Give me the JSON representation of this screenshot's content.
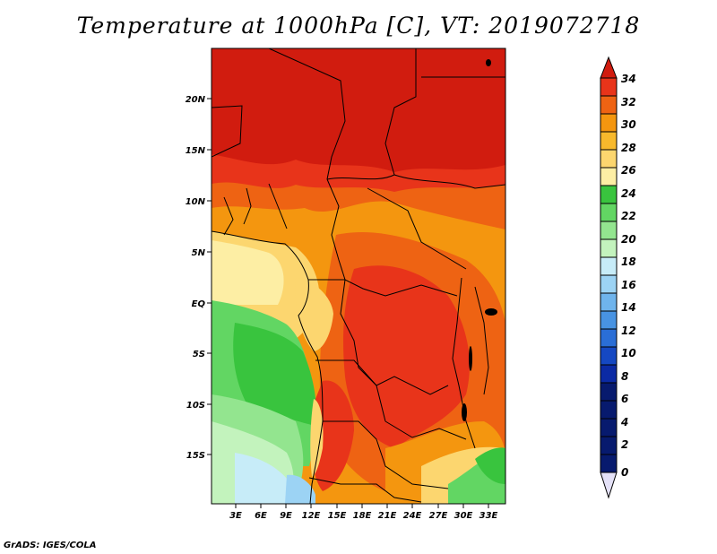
{
  "title": "Temperature at 1000hPa [C], VT: 2019072718",
  "credit": "GrADS: IGES/COLA",
  "map": {
    "lat_ticks": [
      "20N",
      "15N",
      "10N",
      "5N",
      "EQ",
      "5S",
      "10S",
      "15S"
    ],
    "lon_ticks": [
      "3E",
      "6E",
      "9E",
      "12E",
      "15E",
      "18E",
      "21E",
      "24E",
      "27E",
      "30E",
      "33E"
    ]
  },
  "colorbar": {
    "labels": [
      "34",
      "32",
      "30",
      "28",
      "26",
      "24",
      "22",
      "20",
      "18",
      "16",
      "14",
      "12",
      "10",
      "8",
      "6",
      "4",
      "2",
      "0"
    ],
    "colors": {
      "above_34": "#d11c0f",
      "32_34": "#e8341a",
      "30_32": "#ee6313",
      "28_30": "#f4960f",
      "26_28": "#f8b92c",
      "24_26": "#fcd66f",
      "22_24": "#fdeea4",
      "20_22": "#39c43e",
      "18_20": "#62d663",
      "16_18": "#93e58f",
      "14_16": "#c3f3bd",
      "12_14": "#c7ecf8",
      "10_12": "#9cd3f4",
      "8_10": "#6fb4ec",
      "6_8": "#4893e2",
      "4_6": "#2a6ed6",
      "2_4": "#1548c2",
      "0_2": "#0b2aa4",
      "below_0": "#071a6e",
      "under": "#e4e1f7"
    }
  }
}
